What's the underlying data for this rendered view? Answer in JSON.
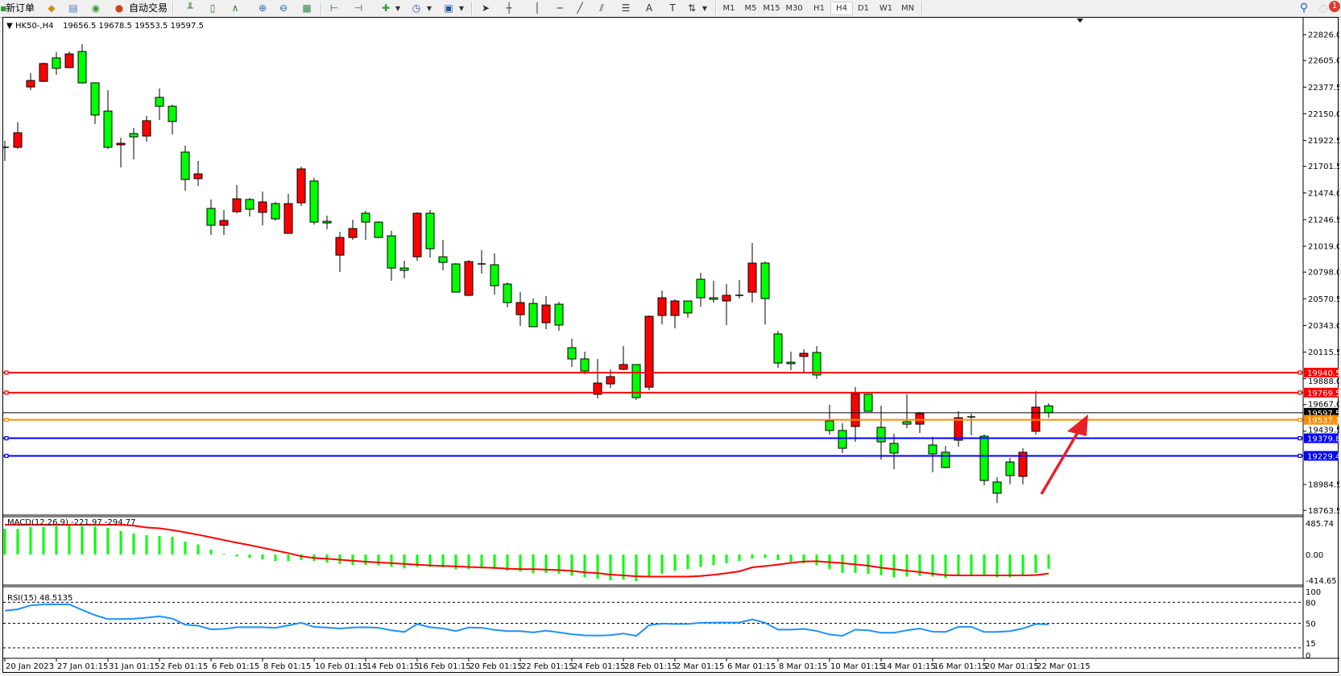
{
  "toolbar": {
    "new_order_label": "新订单",
    "auto_trading_label": "自动交易",
    "icons": [
      "new-order-icon",
      "market-watch-icon",
      "navigator-icon",
      "signals-icon",
      "auto-trading-icon",
      "bar-chart-icon",
      "candlestick-icon",
      "line-chart-icon",
      "zoom-in-icon",
      "zoom-out-icon",
      "tile-windows-icon",
      "auto-scroll-icon",
      "chart-shift-icon",
      "indicators-icon",
      "periods-icon",
      "templates-icon",
      "cursor-icon",
      "crosshair-icon",
      "vertical-line-icon",
      "horizontal-line-icon",
      "trendline-icon",
      "equidistant-channel-icon",
      "fibonacci-icon",
      "text-icon",
      "text-label-icon",
      "arrows-icon",
      "search-icon",
      "notifications-icon"
    ],
    "timeframes": [
      "M1",
      "M5",
      "M15",
      "M30",
      "H1",
      "H4",
      "D1",
      "W1",
      "MN"
    ],
    "active_timeframe": "H4",
    "notification_count": "1"
  },
  "chart_header": {
    "symbol": "HK50-,H4",
    "ohlc": "19656.5 19678.5 19553.5 19597.5"
  },
  "colors": {
    "bull_candle": "#ff0000",
    "bear_candle": "#00ff00",
    "macd_histogram": "#00ff00",
    "macd_signal": "#ff0000",
    "rsi_line": "#1e90ff",
    "arrow": "#e8202a"
  },
  "chart_data": [
    {
      "type": "candlestick",
      "title": "HK50-,H4",
      "ylim": [
        18742,
        22963
      ],
      "y_ticks": [
        "22826.0",
        "22605.0",
        "22377.5",
        "22150.0",
        "21922.5",
        "21701.5",
        "21474.0",
        "21246.5",
        "21019.0",
        "20798.0",
        "20570.5",
        "20343.0",
        "20115.5",
        "19888.0",
        "19667.0",
        "19439.5",
        "18984.5",
        "18763.5"
      ],
      "x_tick_labels": [
        "20 Jan 2023",
        "27 Jan 01:15",
        "31 Jan 01:15",
        "2 Feb 01:15",
        "6 Feb 01:15",
        "8 Feb 01:15",
        "10 Feb 01:15",
        "14 Feb 01:15",
        "16 Feb 01:15",
        "20 Feb 01:15",
        "22 Feb 01:15",
        "24 Feb 01:15",
        "28 Feb 01:15",
        "2 Mar 01:15",
        "6 Mar 01:15",
        "8 Mar 01:15",
        "10 Mar 01:15",
        "14 Mar 01:15",
        "16 Mar 01:15",
        "20 Mar 01:15",
        "22 Mar 01:15"
      ],
      "candles_ohlc": [
        [
          21857,
          21919,
          21747,
          21864
        ],
        [
          21864,
          22077,
          21850,
          21988
        ],
        [
          22379,
          22496,
          22352,
          22434
        ],
        [
          22427,
          22586,
          22421,
          22579
        ],
        [
          22627,
          22675,
          22483,
          22538
        ],
        [
          22544,
          22682,
          22544,
          22661
        ],
        [
          22682,
          22744,
          22407,
          22414
        ],
        [
          22414,
          22414,
          22063,
          22139
        ],
        [
          22173,
          22352,
          21850,
          21864
        ],
        [
          21885,
          21946,
          21692,
          21898
        ],
        [
          21981,
          22029,
          21761,
          21953
        ],
        [
          21960,
          22132,
          21912,
          22091
        ],
        [
          22290,
          22366,
          22098,
          22214
        ],
        [
          22214,
          22228,
          21974,
          22084
        ],
        [
          21823,
          21878,
          21493,
          21589
        ],
        [
          21596,
          21747,
          21534,
          21637
        ],
        [
          21342,
          21418,
          21115,
          21198
        ],
        [
          21198,
          21328,
          21115,
          21239
        ],
        [
          21314,
          21541,
          21301,
          21424
        ],
        [
          21418,
          21431,
          21273,
          21335
        ],
        [
          21308,
          21486,
          21198,
          21397
        ],
        [
          21383,
          21397,
          21239,
          21253
        ],
        [
          21129,
          21466,
          21129,
          21383
        ],
        [
          21390,
          21700,
          21363,
          21679
        ],
        [
          21576,
          21603,
          21204,
          21225
        ],
        [
          21232,
          21280,
          21164,
          21218
        ],
        [
          20943,
          21143,
          20799,
          21094
        ],
        [
          21094,
          21246,
          21074,
          21170
        ],
        [
          21301,
          21321,
          21074,
          21225
        ],
        [
          21225,
          21232,
          21088,
          21094
        ],
        [
          21108,
          21150,
          20724,
          20833
        ],
        [
          20833,
          20894,
          20744,
          20813
        ],
        [
          20929,
          21308,
          20894,
          21301
        ],
        [
          21301,
          21328,
          20923,
          20998
        ],
        [
          20929,
          21074,
          20813,
          20881
        ],
        [
          20868,
          20875,
          20627,
          20627
        ],
        [
          20600,
          20902,
          20593,
          20888
        ],
        [
          20868,
          20985,
          20785,
          20868
        ],
        [
          20861,
          20957,
          20607,
          20682
        ],
        [
          20696,
          20710,
          20497,
          20538
        ],
        [
          20435,
          20627,
          20339,
          20538
        ],
        [
          20531,
          20572,
          20332,
          20332
        ],
        [
          20366,
          20593,
          20311,
          20517
        ],
        [
          20524,
          20545,
          20297,
          20346
        ],
        [
          20153,
          20229,
          19988,
          20057
        ],
        [
          20057,
          20119,
          19926,
          19954
        ],
        [
          19755,
          20057,
          19720,
          19851
        ],
        [
          19844,
          19968,
          19810,
          19906
        ],
        [
          19968,
          20167,
          19961,
          20009
        ],
        [
          20009,
          20009,
          19707,
          19727
        ],
        [
          19816,
          20428,
          19789,
          20421
        ],
        [
          20428,
          20641,
          20352,
          20579
        ],
        [
          20428,
          20566,
          20318,
          20552
        ],
        [
          20552,
          20552,
          20408,
          20449
        ],
        [
          20737,
          20792,
          20504,
          20579
        ],
        [
          20579,
          20724,
          20538,
          20566
        ],
        [
          20552,
          20696,
          20346,
          20600
        ],
        [
          20600,
          20730,
          20572,
          20600
        ],
        [
          20627,
          21046,
          20538,
          20875
        ],
        [
          20875,
          20888,
          20352,
          20572
        ],
        [
          20270,
          20297,
          19981,
          20022
        ],
        [
          20029,
          20119,
          19961,
          20016
        ],
        [
          20078,
          20139,
          19947,
          20105
        ],
        [
          20112,
          20167,
          19886,
          19920
        ],
        [
          19528,
          19665,
          19411,
          19446
        ],
        [
          19446,
          19507,
          19253,
          19294
        ],
        [
          19480,
          19817,
          19349,
          19762
        ],
        [
          19755,
          19755,
          19610,
          19610
        ],
        [
          19473,
          19658,
          19198,
          19349
        ],
        [
          19336,
          19418,
          19116,
          19253
        ],
        [
          19521,
          19755,
          19466,
          19500
        ],
        [
          19500,
          19603,
          19425,
          19590
        ],
        [
          19322,
          19391,
          19089,
          19246
        ],
        [
          19260,
          19315,
          19123,
          19130
        ],
        [
          19363,
          19610,
          19308,
          19555
        ],
        [
          19562,
          19590,
          19404,
          19562
        ],
        [
          19397,
          19411,
          18978,
          19019
        ],
        [
          19006,
          19047,
          18827,
          18910
        ],
        [
          19177,
          19212,
          18987,
          19061
        ],
        [
          19054,
          19295,
          18987,
          19260
        ],
        [
          19439,
          19782,
          19411,
          19645
        ],
        [
          19656.5,
          19678.5,
          19553.5,
          19597.5
        ]
      ],
      "horizontal_lines": [
        {
          "price": "19940.5",
          "color": "#ff0000"
        },
        {
          "price": "19769.5",
          "color": "#ff0000"
        },
        {
          "price": "19597.5",
          "color": "#000000"
        },
        {
          "price": "19537.1",
          "color": "#ff8c00"
        },
        {
          "price": "19379.8",
          "color": "#0000ff"
        },
        {
          "price": "19229.4",
          "color": "#0000ff"
        }
      ],
      "annotation": "upward red arrow"
    },
    {
      "type": "bar+line",
      "title": "MACD(12,26,9) -221.97 -294.77",
      "ylim": [
        -414.65,
        485.74
      ],
      "y_ticks": [
        "485.74",
        "0.00",
        "-414.65"
      ],
      "histogram": [
        398,
        398,
        427,
        427,
        440,
        448,
        440,
        436,
        411,
        365,
        324,
        299,
        286,
        274,
        199,
        154,
        75,
        12,
        -31,
        -54,
        -77,
        -100,
        -100,
        -85,
        -100,
        -124,
        -147,
        -162,
        -162,
        -170,
        -193,
        -216,
        -193,
        -193,
        -201,
        -228,
        -228,
        -216,
        -228,
        -251,
        -262,
        -286,
        -286,
        -298,
        -332,
        -355,
        -379,
        -402,
        -390,
        -413,
        -336,
        -298,
        -255,
        -228,
        -193,
        -162,
        -135,
        -100,
        -66,
        -54,
        -88,
        -112,
        -135,
        -170,
        -228,
        -286,
        -286,
        -298,
        -320,
        -355,
        -343,
        -332,
        -343,
        -366,
        -320,
        -320,
        -332,
        -355,
        -355,
        -332,
        -286,
        -221.97
      ],
      "signal": [
        461,
        461,
        461,
        461,
        461,
        461,
        461,
        461,
        461,
        461,
        448,
        419,
        407,
        378,
        344,
        307,
        266,
        224,
        183,
        145,
        104,
        62,
        21,
        -27,
        -54,
        -66,
        -81,
        -97,
        -112,
        -124,
        -135,
        -147,
        -158,
        -170,
        -178,
        -185,
        -193,
        -201,
        -208,
        -220,
        -228,
        -228,
        -235,
        -242,
        -255,
        -278,
        -289,
        -312,
        -325,
        -339,
        -343,
        -343,
        -343,
        -343,
        -335,
        -315,
        -290,
        -262,
        -200,
        -180,
        -158,
        -130,
        -110,
        -105,
        -120,
        -135,
        -154,
        -174,
        -205,
        -228,
        -251,
        -274,
        -298,
        -320,
        -325,
        -325,
        -325,
        -325,
        -325,
        -325,
        -320,
        -294.77
      ]
    },
    {
      "type": "line",
      "title": "RSI(15) 48.5135",
      "ylim": [
        0,
        100
      ],
      "y_ticks": [
        "100",
        "80",
        "50",
        "15",
        "0"
      ],
      "levels": [
        80,
        50,
        15
      ],
      "values": [
        68,
        70,
        75.5,
        77,
        77,
        77,
        69,
        61.6,
        56,
        56,
        56.4,
        58,
        60,
        56.7,
        48,
        46.6,
        41.4,
        42,
        44.4,
        44.4,
        44.4,
        43.6,
        47,
        50.7,
        44.8,
        44,
        42.5,
        44,
        44.4,
        43.6,
        40,
        37.6,
        49,
        44.4,
        42.5,
        39,
        44,
        43.6,
        40.6,
        38.8,
        38.8,
        36.9,
        39.5,
        37,
        34.3,
        32.8,
        32.4,
        33,
        35.4,
        32,
        47.4,
        49.6,
        49,
        49,
        50.7,
        51,
        51,
        51,
        55.6,
        50.7,
        41,
        41,
        42,
        39,
        34,
        32,
        41,
        40,
        36.5,
        36.5,
        40,
        42.5,
        38,
        37.6,
        45,
        45,
        37.6,
        37.6,
        38.8,
        42.5,
        49,
        48.5135
      ]
    }
  ]
}
